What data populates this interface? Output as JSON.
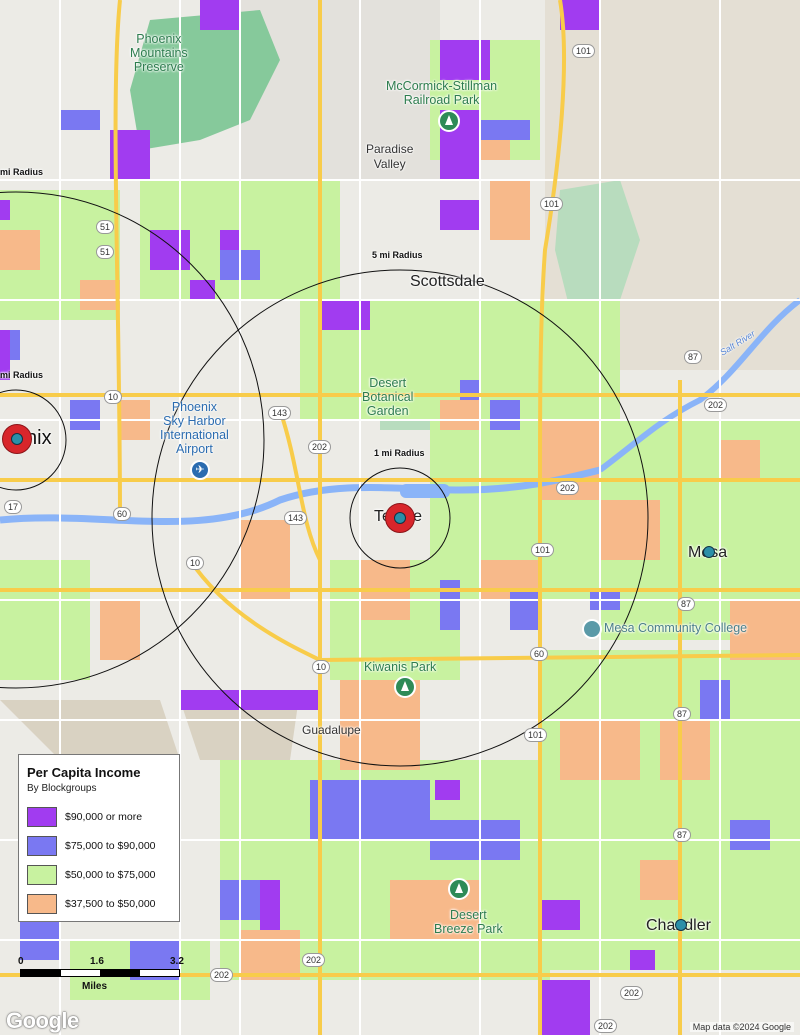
{
  "legend": {
    "title": "Per Capita Income",
    "subtitle": "By Blockgroups",
    "items": [
      {
        "label": "$90,000 or more",
        "color": "#a13cf0"
      },
      {
        "label": "$75,000 to $90,000",
        "color": "#7a78f2"
      },
      {
        "label": "$50,000 to $75,000",
        "color": "#c8f2a0"
      },
      {
        "label": "$37,500 to $50,000",
        "color": "#f7b98a"
      }
    ]
  },
  "scale": {
    "ticks": [
      "0",
      "1.6",
      "3.2"
    ],
    "unit": "Miles"
  },
  "places": {
    "phoenix": "nix",
    "tempe": "Tempe",
    "scottsdale": "Scottsdale",
    "mesa": "Mesa",
    "chandler": "Chandler",
    "guadalupe": "Guadalupe",
    "paradise_valley": "Paradise\nValley"
  },
  "parks": {
    "phoenix_mountains": "Phoenix\nMountains\nPreserve",
    "mccormick": "McCormick-Stillman\nRailroad Park",
    "desert_botanical": "Desert\nBotanical\nGarden",
    "kiwanis": "Kiwanis Park",
    "desert_breeze": "Desert\nBreeze Park"
  },
  "poi": {
    "airport": "Phoenix\nSky Harbor\nInternational\nAirport",
    "mesa_cc": "Mesa Community College",
    "salt_river": "Salt River"
  },
  "radii": {
    "r1_phx": "mi Radius",
    "r5_phx": "mi Radius",
    "r5_tempe": "5 mi Radius",
    "r1_tempe": "1 mi Radius"
  },
  "shields": [
    "101",
    "101",
    "51",
    "51",
    "10",
    "143",
    "143",
    "202",
    "202",
    "202",
    "101",
    "60",
    "60",
    "87",
    "87",
    "87",
    "87",
    "202",
    "202",
    "10",
    "17",
    "10",
    "101",
    "202",
    "202"
  ],
  "branding": {
    "logo": "Google",
    "attribution": "Map data ©2024 Google"
  },
  "colors": {
    "land": "#ecebe6",
    "road": "#f8cc4a",
    "water": "#8ab4f8",
    "park": "#86c99b",
    "terrain": "#d9d2c2"
  }
}
